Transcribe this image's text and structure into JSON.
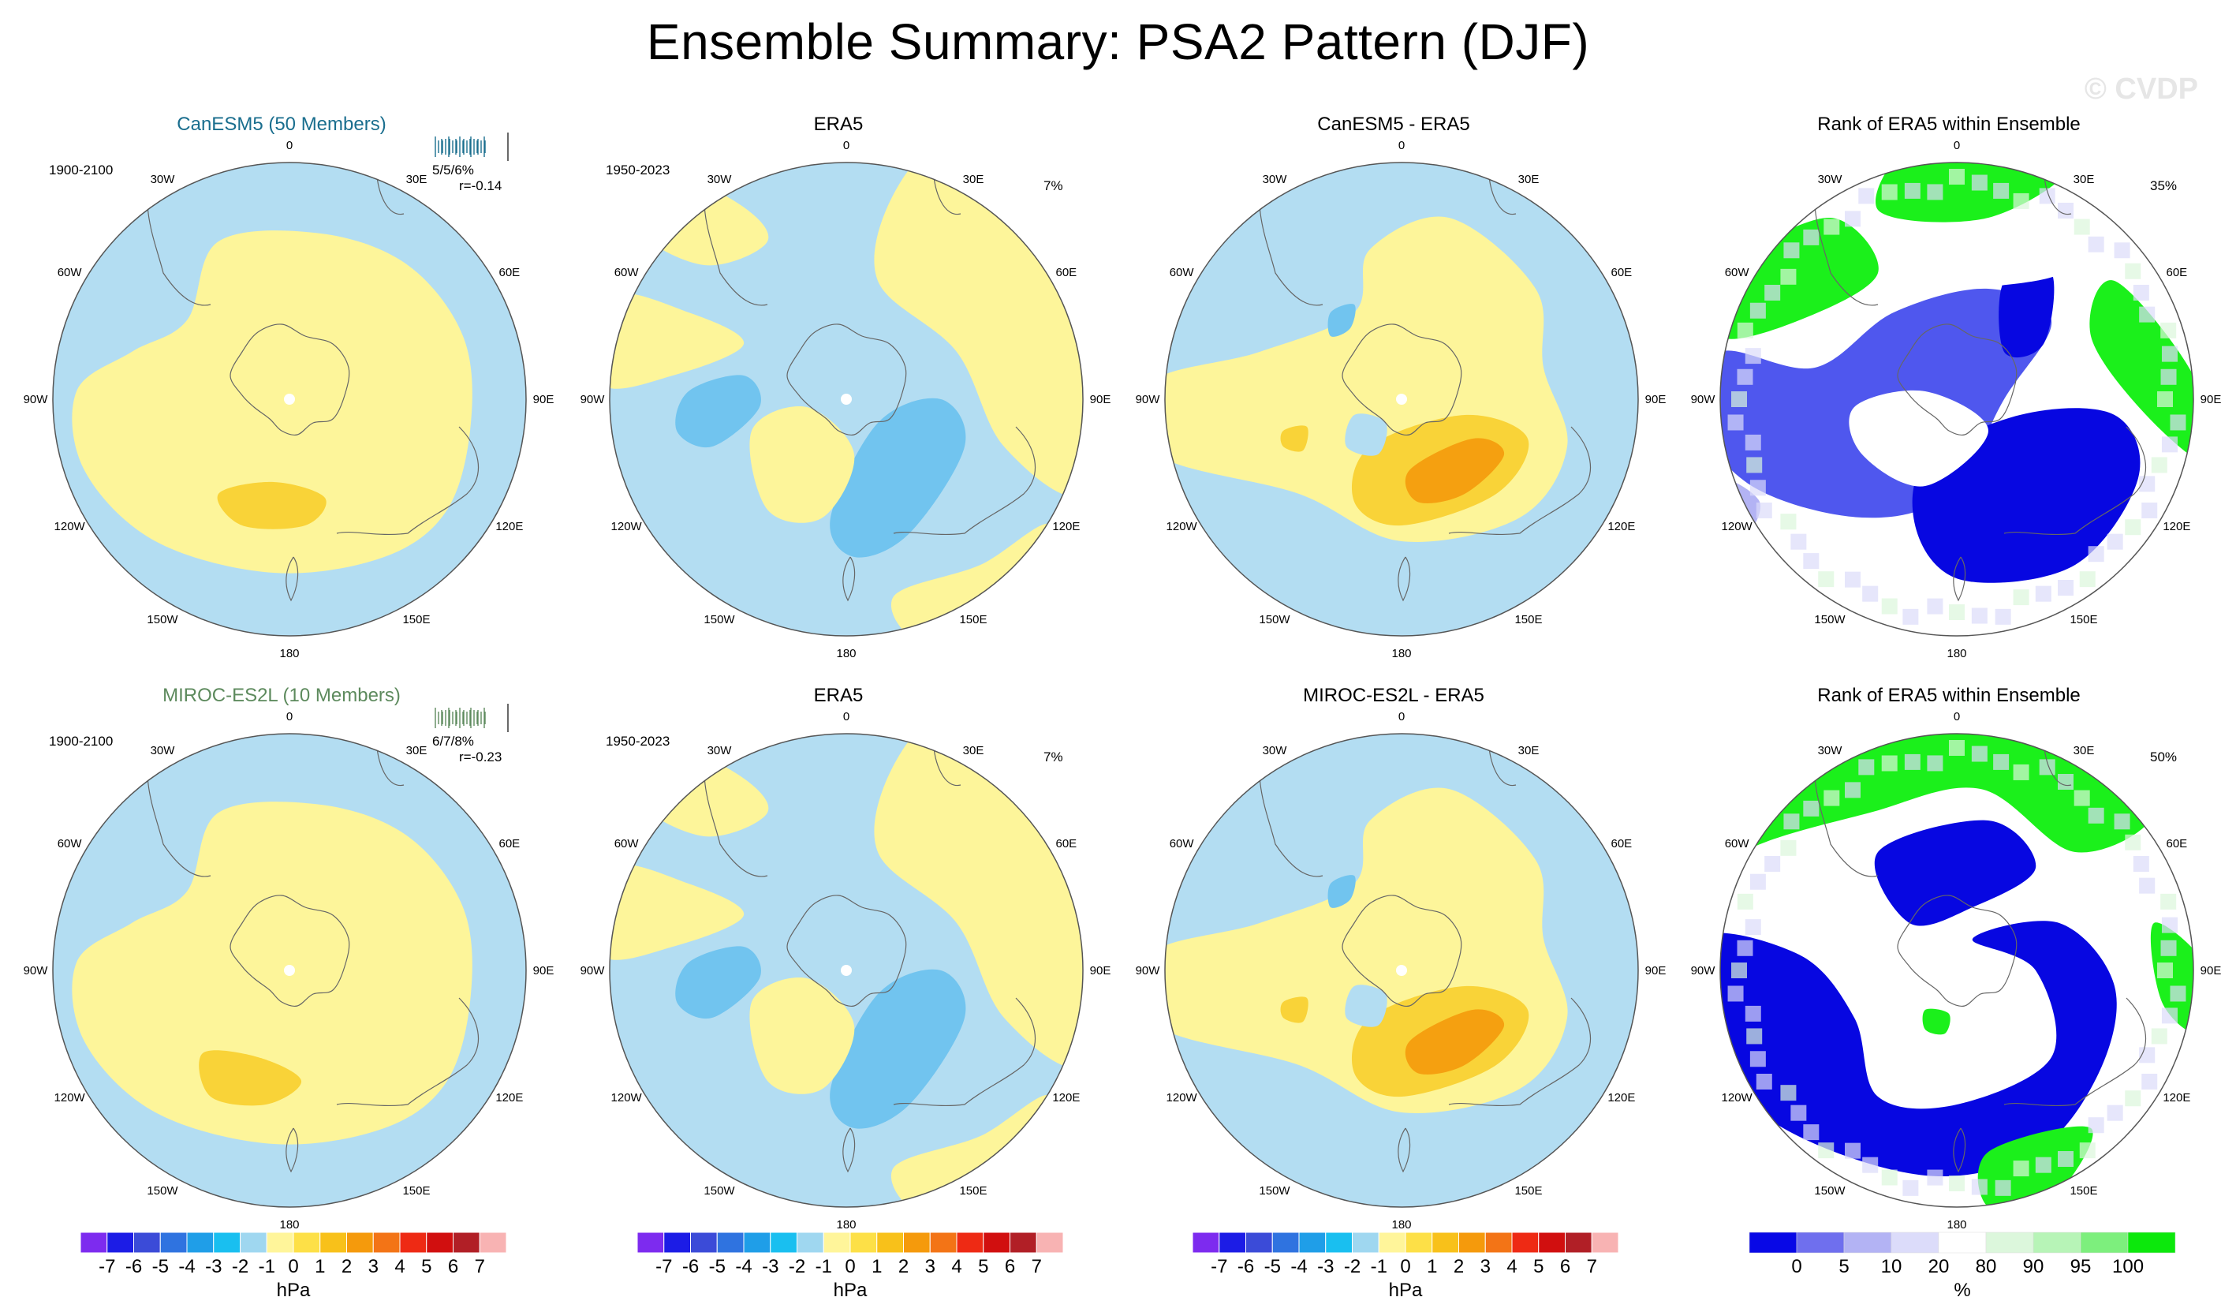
{
  "title": "Ensemble Summary: PSA2 Pattern (DJF)",
  "watermark": "© CVDP",
  "colors": {
    "hpa_scale": [
      "#7d2bef",
      "#1c1ce6",
      "#3b4bd8",
      "#2f73e0",
      "#1f9ee8",
      "#19bff0",
      "#9fd7f0",
      "#fff59a",
      "#fde047",
      "#f8c11a",
      "#f59a0c",
      "#f37416",
      "#ee2a14",
      "#d10f0f",
      "#b11f26",
      "#f8b3b3"
    ],
    "rank_scale": [
      "#0808e6",
      "#6f6fee",
      "#b3b3f4",
      "#dcdcfa",
      "#ffffff",
      "#dcf7dc",
      "#b7f4b7",
      "#7def7d",
      "#0ce80c"
    ],
    "light_blue": "#b3ddf2",
    "light_yellow": "#fdf59a",
    "mid_yellow": "#f9d338",
    "orange": "#f5a010",
    "mid_blue": "#71c4ef",
    "blue_rank": "#0707e1",
    "green_rank": "#1bf01b",
    "model1_title_color": "#1a6e8e",
    "model2_title_color": "#5d8a5d"
  },
  "rows": [
    {
      "model_title": "CanESM5 (50 Members)",
      "model_years": "1900-2100",
      "model_stats_a": "5/5/6%",
      "model_stats_b": "r=-0.14",
      "obs_title": "ERA5",
      "obs_years": "1950-2023",
      "obs_pct": "7%",
      "diff_title": "CanESM5 - ERA5",
      "rank_title": "Rank of ERA5 within Ensemble",
      "rank_pct": "35%"
    },
    {
      "model_title": "MIROC-ES2L (10 Members)",
      "model_years": "1900-2100",
      "model_stats_a": "6/7/8%",
      "model_stats_b": "r=-0.23",
      "obs_title": "ERA5",
      "obs_years": "1950-2023",
      "obs_pct": "7%",
      "diff_title": "MIROC-ES2L - ERA5",
      "rank_title": "Rank of ERA5 within Ensemble",
      "rank_pct": "50%"
    }
  ],
  "longitude_labels": [
    "0",
    "30E",
    "60E",
    "90E",
    "120E",
    "150E",
    "180",
    "150W",
    "120W",
    "90W",
    "60W",
    "30W"
  ],
  "colorbars": {
    "hpa": {
      "ticks": [
        "-7",
        "-6",
        "-5",
        "-4",
        "-3",
        "-2",
        "-1",
        "0",
        "1",
        "2",
        "3",
        "4",
        "5",
        "6",
        "7"
      ],
      "unit": "hPa"
    },
    "rank": {
      "ticks": [
        "0",
        "5",
        "10",
        "20",
        "80",
        "90",
        "95",
        "100"
      ],
      "unit": "%"
    }
  },
  "chart_data": [
    {
      "type": "heatmap",
      "title": "CanESM5 (50 Members)",
      "projection": "south polar stereographic",
      "field": "PSA2 pattern SLP regression",
      "units": "hPa",
      "period": "1900-2100",
      "clevels": [
        -7,
        -6,
        -5,
        -4,
        -3,
        -2,
        -1,
        0,
        1,
        2,
        3,
        4,
        5,
        6,
        7
      ],
      "annotation": "5/5/6%  r=-0.14"
    },
    {
      "type": "heatmap",
      "title": "ERA5",
      "projection": "south polar stereographic",
      "units": "hPa",
      "period": "1950-2023",
      "annotation": "7%"
    },
    {
      "type": "heatmap",
      "title": "CanESM5 - ERA5",
      "projection": "south polar stereographic",
      "units": "hPa"
    },
    {
      "type": "heatmap",
      "title": "Rank of ERA5 within Ensemble",
      "units": "%",
      "clevels": [
        0,
        5,
        10,
        20,
        80,
        90,
        95,
        100
      ],
      "annotation": "35%"
    },
    {
      "type": "heatmap",
      "title": "MIROC-ES2L (10 Members)",
      "projection": "south polar stereographic",
      "units": "hPa",
      "period": "1900-2100",
      "annotation": "6/7/8%  r=-0.23"
    },
    {
      "type": "heatmap",
      "title": "ERA5",
      "projection": "south polar stereographic",
      "units": "hPa",
      "period": "1950-2023",
      "annotation": "7%"
    },
    {
      "type": "heatmap",
      "title": "MIROC-ES2L - ERA5",
      "projection": "south polar stereographic",
      "units": "hPa"
    },
    {
      "type": "heatmap",
      "title": "Rank of ERA5 within Ensemble",
      "units": "%",
      "clevels": [
        0,
        5,
        10,
        20,
        80,
        90,
        95,
        100
      ],
      "annotation": "50%"
    }
  ]
}
